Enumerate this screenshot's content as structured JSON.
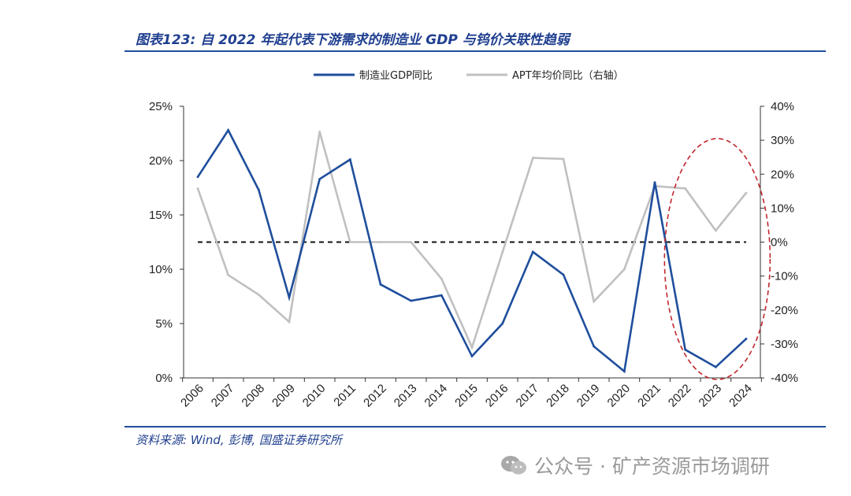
{
  "header": {
    "title": "图表123: 自 2022 年起代表下游需求的制造业 GDP 与钨价关联性趋弱"
  },
  "footer": {
    "source": "资料来源: Wind, 彭博, 国盛证券研究所"
  },
  "watermark": {
    "text": "公众号 · 矿产资源市场调研",
    "icon": "wechat-icon"
  },
  "colors": {
    "series1": "#1f4e9c",
    "series2": "#c0c0c0",
    "highlight": "#c0272d",
    "accent": "#1f3f8f"
  },
  "chart_data": {
    "type": "line",
    "title": "",
    "categories": [
      "2006",
      "2007",
      "2008",
      "2009",
      "2010",
      "2011",
      "2012",
      "2013",
      "2014",
      "2015",
      "2016",
      "2017",
      "2018",
      "2019",
      "2020",
      "2021",
      "2022",
      "2023",
      "2024"
    ],
    "series": [
      {
        "name": "制造业GDP同比",
        "axis": "left",
        "values": [
          18.5,
          22.8,
          17.3,
          7.4,
          18.3,
          20.1,
          8.6,
          7.1,
          7.6,
          2.0,
          5.0,
          11.6,
          9.5,
          2.9,
          0.6,
          18.0,
          2.6,
          1.0,
          3.6
        ]
      },
      {
        "name": "APT年均价同比（右轴）",
        "axis": "right",
        "values": [
          15.8,
          -9.7,
          -15.5,
          -23.5,
          32.5,
          0.0,
          0.0,
          0.0,
          -10.8,
          -31.0,
          -3.0,
          24.8,
          24.5,
          -17.5,
          -8.0,
          16.5,
          15.8,
          3.4,
          14.5
        ]
      }
    ],
    "reference_line": {
      "axis": "right",
      "value": 0,
      "style": "dashed"
    },
    "yleft": {
      "min": 0,
      "max": 25,
      "step": 5,
      "ticks": [
        "0%",
        "5%",
        "10%",
        "15%",
        "20%",
        "25%"
      ]
    },
    "yright": {
      "min": -40,
      "max": 40,
      "step": 10,
      "ticks": [
        "-40%",
        "-30%",
        "-20%",
        "-10%",
        "0%",
        "10%",
        "20%",
        "30%",
        "40%"
      ]
    },
    "highlight": {
      "description": "circle",
      "from": "2022",
      "to": "2024"
    },
    "legend_placement": "top-center"
  }
}
